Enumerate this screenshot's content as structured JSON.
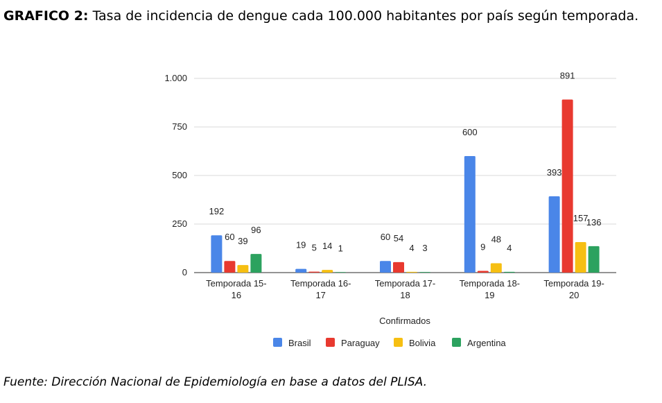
{
  "title": {
    "prefix": "GRAFICO 2:",
    "text": "Tasa de incidencia de dengue cada 100.000 habitantes por país según temporada."
  },
  "source": "Fuente: Dirección Nacional de Epidemiología en base a datos del PLISA.",
  "chart_data": {
    "type": "bar",
    "title": "",
    "xlabel": "Confirmados",
    "ylabel": "",
    "ylim": [
      0,
      1000
    ],
    "yticks": [
      0,
      250,
      500,
      750,
      1000
    ],
    "ytick_labels": [
      "0",
      "250",
      "500",
      "750",
      "1.000"
    ],
    "grid": true,
    "legend_position": "bottom",
    "categories": [
      [
        "Temporada 15-",
        "16"
      ],
      [
        "Temporada 16-",
        "17"
      ],
      [
        "Temporada 17-",
        "18"
      ],
      [
        "Temporada 18-",
        "19"
      ],
      [
        "Temporada 19-",
        "20"
      ]
    ],
    "series": [
      {
        "name": "Brasil",
        "color": "#4a86e8",
        "values": [
          192,
          19,
          60,
          600,
          393
        ]
      },
      {
        "name": "Paraguay",
        "color": "#e8392f",
        "values": [
          60,
          5,
          54,
          9,
          891
        ]
      },
      {
        "name": "Bolivia",
        "color": "#f6bf12",
        "values": [
          39,
          14,
          4,
          48,
          157
        ]
      },
      {
        "name": "Argentina",
        "color": "#2ca25f",
        "values": [
          96,
          1,
          3,
          4,
          136
        ]
      }
    ],
    "data_labels": [
      [
        "192",
        "19",
        "60",
        "600",
        "393"
      ],
      [
        "60",
        "5",
        "54",
        "9",
        "891"
      ],
      [
        "39",
        "14",
        "4",
        "48",
        "157"
      ],
      [
        "96",
        "1",
        "3",
        "4",
        "136"
      ]
    ]
  }
}
